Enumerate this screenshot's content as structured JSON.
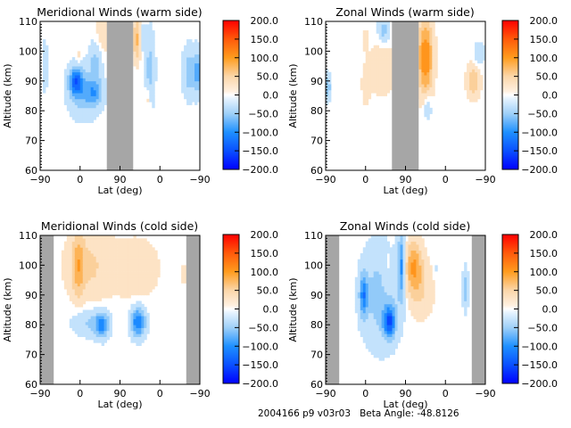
{
  "footer": {
    "id_text": "2004166 p9 v03r03",
    "beta_label": "Beta Angle:",
    "beta_value": "-48.8126"
  },
  "colorscale": {
    "stops": [
      {
        "value": -200,
        "color": "#0000ff"
      },
      {
        "value": -150,
        "color": "#0a50ff"
      },
      {
        "value": -100,
        "color": "#1e90ff"
      },
      {
        "value": -50,
        "color": "#9fd0f8"
      },
      {
        "value": -10,
        "color": "#e6f3ff"
      },
      {
        "value": 0,
        "color": "#ffffff"
      },
      {
        "value": 10,
        "color": "#fff0e0"
      },
      {
        "value": 50,
        "color": "#fbd6a9"
      },
      {
        "value": 100,
        "color": "#ff9c1e"
      },
      {
        "value": 150,
        "color": "#ff5a0a"
      },
      {
        "value": 200,
        "color": "#ff0000"
      }
    ],
    "tick_labels": [
      "200.0",
      "150.0",
      "100.0",
      "50.0",
      "0.0",
      "-50.0",
      "-100.0",
      "-150.0",
      "-200.0"
    ],
    "tick_values": [
      200,
      150,
      100,
      50,
      0,
      -50,
      -100,
      -150,
      -200
    ]
  },
  "chart_data": [
    {
      "type": "heatmap",
      "title": "Meridional Winds (warm side)",
      "xlabel": "Lat (deg)",
      "ylabel": "Altitude (km)",
      "xtick_labels": [
        "-90",
        "0",
        "90",
        "0",
        "-90"
      ],
      "ytick_labels": [
        "60",
        "70",
        "80",
        "90",
        "100",
        "110"
      ],
      "ylim": [
        60,
        110
      ],
      "xlim_track": [
        0,
        4
      ],
      "zlim": [
        -200,
        200
      ],
      "no_data_ranges": [
        [
          1.67,
          2.33
        ]
      ],
      "features": [
        {
          "x": 0.12,
          "y": 95,
          "value": -30,
          "sx": 0.05,
          "sy": 6
        },
        {
          "x": 0.9,
          "y": 90,
          "value": -110,
          "sx": 0.12,
          "sy": 3.5
        },
        {
          "x": 1.1,
          "y": 86,
          "value": -45,
          "sx": 0.28,
          "sy": 6
        },
        {
          "x": 1.4,
          "y": 97,
          "value": -45,
          "sx": 0.12,
          "sy": 5
        },
        {
          "x": 1.35,
          "y": 86,
          "value": -55,
          "sx": 0.15,
          "sy": 3
        },
        {
          "x": 1.55,
          "y": 105,
          "value": 30,
          "sx": 0.12,
          "sy": 6
        },
        {
          "x": 0.95,
          "y": 98,
          "value": 25,
          "sx": 0.06,
          "sy": 2
        },
        {
          "x": 2.42,
          "y": 104,
          "value": 70,
          "sx": 0.07,
          "sy": 5
        },
        {
          "x": 2.75,
          "y": 94,
          "value": -45,
          "sx": 0.09,
          "sy": 9
        },
        {
          "x": 2.7,
          "y": 84,
          "value": 30,
          "sx": 0.05,
          "sy": 3
        },
        {
          "x": 3.75,
          "y": 93,
          "value": -50,
          "sx": 0.13,
          "sy": 6
        },
        {
          "x": 3.95,
          "y": 93,
          "value": -60,
          "sx": 0.06,
          "sy": 5
        },
        {
          "x": 2.55,
          "y": 105,
          "value": -25,
          "sx": 0.06,
          "sy": 4
        }
      ]
    },
    {
      "type": "heatmap",
      "title": "Zonal Winds (warm side)",
      "xlabel": "Lat (deg)",
      "ylabel": "Altitude (km)",
      "xtick_labels": [
        "-90",
        "0",
        "90",
        "0",
        "-90"
      ],
      "ytick_labels": [
        "60",
        "70",
        "80",
        "90",
        "100",
        "110"
      ],
      "ylim": [
        60,
        110
      ],
      "xlim_track": [
        0,
        4
      ],
      "zlim": [
        -200,
        200
      ],
      "no_data_ranges": [
        [
          1.66,
          2.33
        ]
      ],
      "features": [
        {
          "x": 0.05,
          "y": 88,
          "value": -60,
          "sx": 0.05,
          "sy": 3
        },
        {
          "x": 1.45,
          "y": 107,
          "value": -50,
          "sx": 0.1,
          "sy": 3
        },
        {
          "x": 1.4,
          "y": 94,
          "value": 35,
          "sx": 0.22,
          "sy": 6
        },
        {
          "x": 1.0,
          "y": 88,
          "value": 20,
          "sx": 0.08,
          "sy": 5
        },
        {
          "x": 1.0,
          "y": 104,
          "value": 18,
          "sx": 0.05,
          "sy": 3
        },
        {
          "x": 2.5,
          "y": 98,
          "value": 110,
          "sx": 0.13,
          "sy": 9
        },
        {
          "x": 2.55,
          "y": 81,
          "value": -45,
          "sx": 0.07,
          "sy": 3
        },
        {
          "x": 3.7,
          "y": 90,
          "value": 55,
          "sx": 0.12,
          "sy": 4
        },
        {
          "x": 3.85,
          "y": 99,
          "value": -30,
          "sx": 0.1,
          "sy": 3
        }
      ]
    },
    {
      "type": "heatmap",
      "title": "Meridional Winds (cold side)",
      "xlabel": "Lat (deg)",
      "ylabel": "Altitude (km)",
      "xtick_labels": [
        "-90",
        "0",
        "90",
        "0",
        "-90"
      ],
      "ytick_labels": [
        "60",
        "70",
        "80",
        "90",
        "100",
        "110"
      ],
      "ylim": [
        60,
        110
      ],
      "xlim_track": [
        0,
        4
      ],
      "zlim": [
        -200,
        200
      ],
      "no_data_ranges": [
        [
          0,
          0.34
        ],
        [
          3.66,
          4
        ]
      ],
      "features": [
        {
          "x": 1.2,
          "y": 100,
          "value": 40,
          "sx": 0.4,
          "sy": 9
        },
        {
          "x": 0.95,
          "y": 100,
          "value": 55,
          "sx": 0.1,
          "sy": 8
        },
        {
          "x": 2.4,
          "y": 99,
          "value": 30,
          "sx": 0.4,
          "sy": 7
        },
        {
          "x": 1.55,
          "y": 80,
          "value": -90,
          "sx": 0.12,
          "sy": 3
        },
        {
          "x": 1.2,
          "y": 81,
          "value": -40,
          "sx": 0.3,
          "sy": 3.5
        },
        {
          "x": 2.45,
          "y": 81,
          "value": -110,
          "sx": 0.13,
          "sy": 3.5
        },
        {
          "x": 0.4,
          "y": 95,
          "value": -25,
          "sx": 0.03,
          "sy": 4
        },
        {
          "x": 3.6,
          "y": 97,
          "value": 20,
          "sx": 0.04,
          "sy": 3
        }
      ]
    },
    {
      "type": "heatmap",
      "title": "Zonal Winds (cold side)",
      "xlabel": "Lat (deg)",
      "ylabel": "Altitude (km)",
      "xtick_labels": [
        "-90",
        "0",
        "90",
        "0",
        "-90"
      ],
      "ytick_labels": [
        "60",
        "70",
        "80",
        "90",
        "100",
        "110"
      ],
      "ylim": [
        60,
        110
      ],
      "xlim_track": [
        0,
        4
      ],
      "zlim": [
        -200,
        200
      ],
      "no_data_ranges": [
        [
          0,
          0.34
        ],
        [
          3.66,
          4
        ]
      ],
      "features": [
        {
          "x": 1.4,
          "y": 90,
          "value": -50,
          "sx": 0.35,
          "sy": 12
        },
        {
          "x": 0.95,
          "y": 90,
          "value": -90,
          "sx": 0.07,
          "sy": 5
        },
        {
          "x": 1.6,
          "y": 81,
          "value": -120,
          "sx": 0.1,
          "sy": 3.5
        },
        {
          "x": 1.9,
          "y": 100,
          "value": -90,
          "sx": 0.06,
          "sy": 8
        },
        {
          "x": 1.55,
          "y": 97,
          "value": 25,
          "sx": 0.12,
          "sy": 6
        },
        {
          "x": 2.2,
          "y": 100,
          "value": 80,
          "sx": 0.15,
          "sy": 6
        },
        {
          "x": 2.35,
          "y": 92,
          "value": 35,
          "sx": 0.25,
          "sy": 7
        },
        {
          "x": 3.5,
          "y": 92,
          "value": -45,
          "sx": 0.05,
          "sy": 5
        },
        {
          "x": 2.75,
          "y": 99,
          "value": -20,
          "sx": 0.04,
          "sy": 2
        }
      ]
    }
  ]
}
